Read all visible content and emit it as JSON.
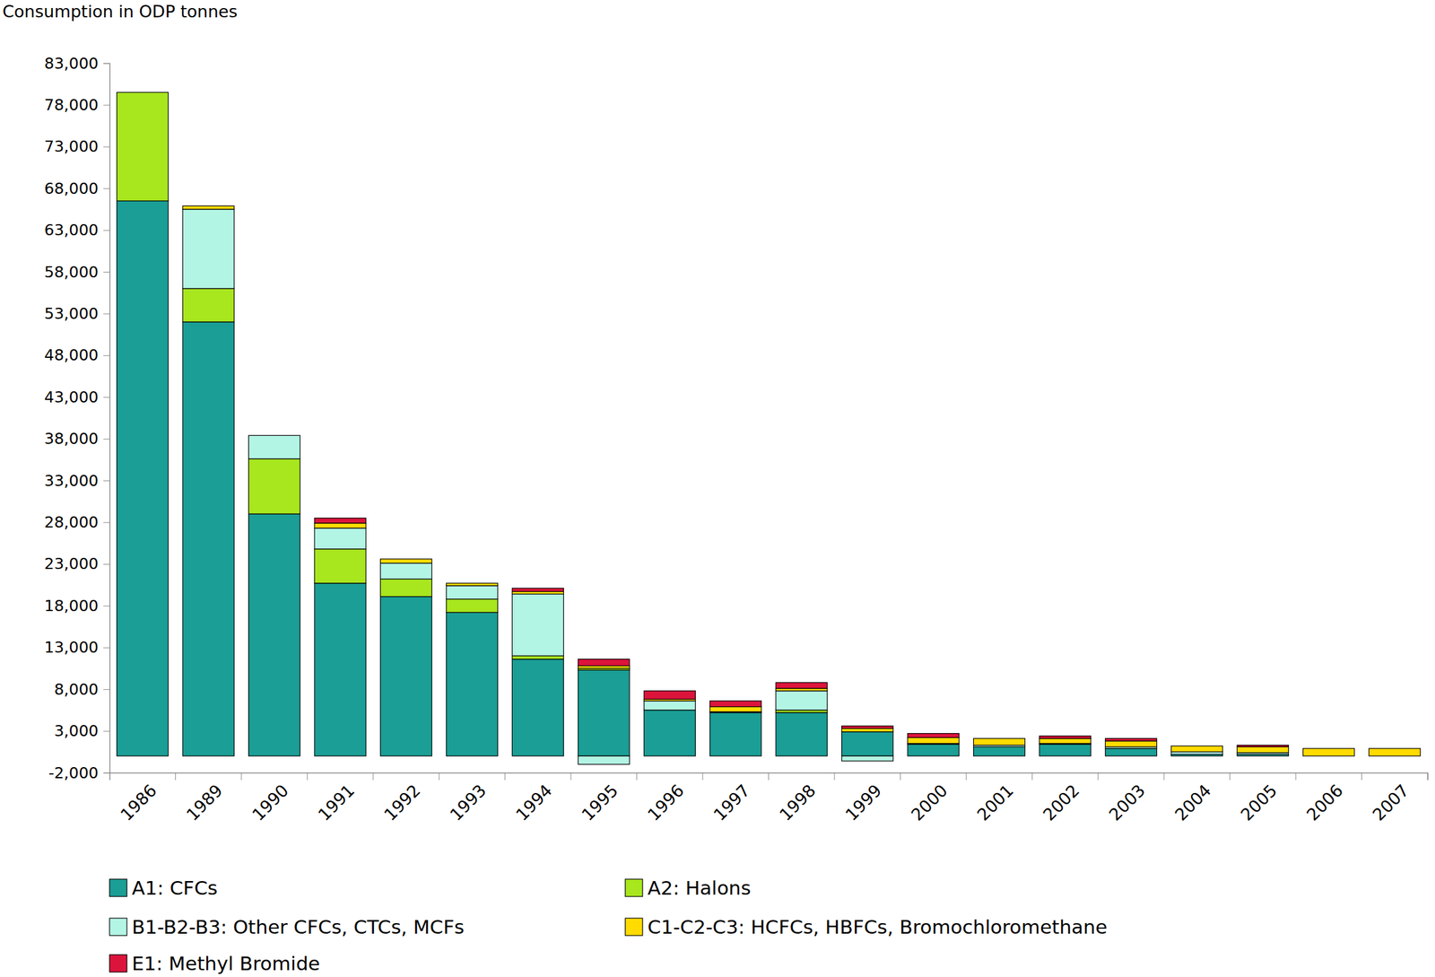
{
  "chart_data": {
    "type": "bar",
    "stacked": true,
    "grid": false,
    "legend": "bottom",
    "y_label": "Consumption in ODP tonnes",
    "categories": [
      "1986",
      "1989",
      "1990",
      "1991",
      "1992",
      "1993",
      "1994",
      "1995",
      "1996",
      "1997",
      "1998",
      "1999",
      "2000",
      "2001",
      "2002",
      "2003",
      "2004",
      "2005",
      "2006",
      "2007"
    ],
    "ylim": [
      -2000,
      83000
    ],
    "yticks": [
      {
        "value": -2000,
        "label": "-2,000"
      },
      {
        "value": 3000,
        "label": "3,000"
      },
      {
        "value": 8000,
        "label": "8,000"
      },
      {
        "value": 13000,
        "label": "13,000"
      },
      {
        "value": 18000,
        "label": "18,000"
      },
      {
        "value": 23000,
        "label": "23,000"
      },
      {
        "value": 28000,
        "label": "28,000"
      },
      {
        "value": 33000,
        "label": "33,000"
      },
      {
        "value": 38000,
        "label": "38,000"
      },
      {
        "value": 43000,
        "label": "43,000"
      },
      {
        "value": 48000,
        "label": "48,000"
      },
      {
        "value": 53000,
        "label": "53,000"
      },
      {
        "value": 58000,
        "label": "58,000"
      },
      {
        "value": 63000,
        "label": "63,000"
      },
      {
        "value": 68000,
        "label": "68,000"
      },
      {
        "value": 73000,
        "label": "73,000"
      },
      {
        "value": 78000,
        "label": "78,000"
      },
      {
        "value": 83000,
        "label": "83,000"
      }
    ],
    "series": [
      {
        "name": "A1: CFCs",
        "color": "#1a9e96",
        "values": [
          66500,
          52000,
          29000,
          20700,
          19100,
          17200,
          11600,
          10300,
          5500,
          5200,
          5200,
          2900,
          1400,
          1100,
          1400,
          900,
          200,
          200,
          0,
          0
        ]
      },
      {
        "name": "A2: Halons",
        "color": "#a8e61d",
        "values": [
          13000,
          4000,
          6600,
          4100,
          2100,
          1600,
          400,
          200,
          0,
          0,
          300,
          0,
          0,
          0,
          0,
          0,
          0,
          0,
          0,
          0
        ]
      },
      {
        "name": "B1-B2-B3: Other CFCs, CTCs, MCFs",
        "color": "#b3f5e4",
        "values": [
          0,
          9500,
          2800,
          2500,
          1900,
          1600,
          7400,
          -1000,
          1100,
          100,
          2300,
          -600,
          100,
          200,
          100,
          200,
          300,
          200,
          0,
          0
        ]
      },
      {
        "name": "C1-C2-C3: HCFCs, HBFCs, Bromochloromethane",
        "color": "#ffdb00",
        "values": [
          0,
          400,
          0,
          600,
          500,
          300,
          300,
          300,
          200,
          600,
          300,
          400,
          700,
          800,
          600,
          700,
          700,
          700,
          900,
          900
        ]
      },
      {
        "name": "E1: Methyl Bromide",
        "color": "#dc143c",
        "values": [
          0,
          0,
          0,
          600,
          0,
          0,
          400,
          800,
          1000,
          700,
          700,
          300,
          500,
          0,
          300,
          300,
          0,
          200,
          0,
          0
        ]
      }
    ]
  }
}
